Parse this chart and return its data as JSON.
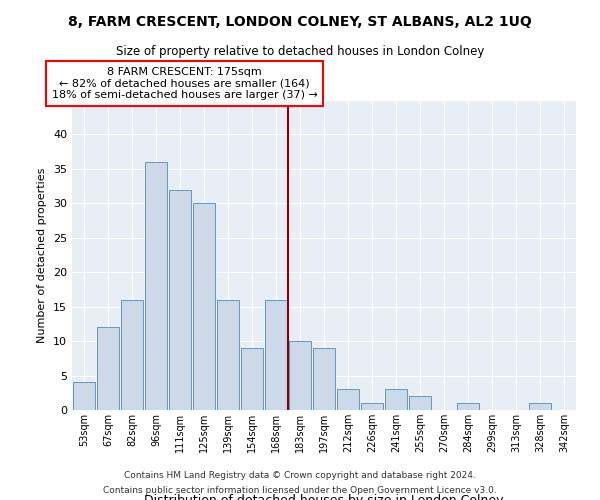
{
  "title": "8, FARM CRESCENT, LONDON COLNEY, ST ALBANS, AL2 1UQ",
  "subtitle": "Size of property relative to detached houses in London Colney",
  "xlabel": "Distribution of detached houses by size in London Colney",
  "ylabel": "Number of detached properties",
  "bin_labels": [
    "53sqm",
    "67sqm",
    "82sqm",
    "96sqm",
    "111sqm",
    "125sqm",
    "139sqm",
    "154sqm",
    "168sqm",
    "183sqm",
    "197sqm",
    "212sqm",
    "226sqm",
    "241sqm",
    "255sqm",
    "270sqm",
    "284sqm",
    "299sqm",
    "313sqm",
    "328sqm",
    "342sqm"
  ],
  "bar_values": [
    4,
    12,
    16,
    36,
    32,
    30,
    16,
    9,
    16,
    10,
    9,
    3,
    1,
    3,
    2,
    0,
    1,
    0,
    0,
    1,
    0
  ],
  "bar_color": "#ccd9e8",
  "bar_edge_color": "#6699bb",
  "red_line_index": 8,
  "annotation_title": "8 FARM CRESCENT: 175sqm",
  "annotation_line1": "← 82% of detached houses are smaller (164)",
  "annotation_line2": "18% of semi-detached houses are larger (37) →",
  "footer1": "Contains HM Land Registry data © Crown copyright and database right 2024.",
  "footer2": "Contains public sector information licensed under the Open Government Licence v3.0.",
  "bg_color": "#ffffff",
  "plot_bg_color": "#e8eef5",
  "ylim": [
    0,
    45
  ],
  "yticks": [
    0,
    5,
    10,
    15,
    20,
    25,
    30,
    35,
    40,
    45
  ]
}
